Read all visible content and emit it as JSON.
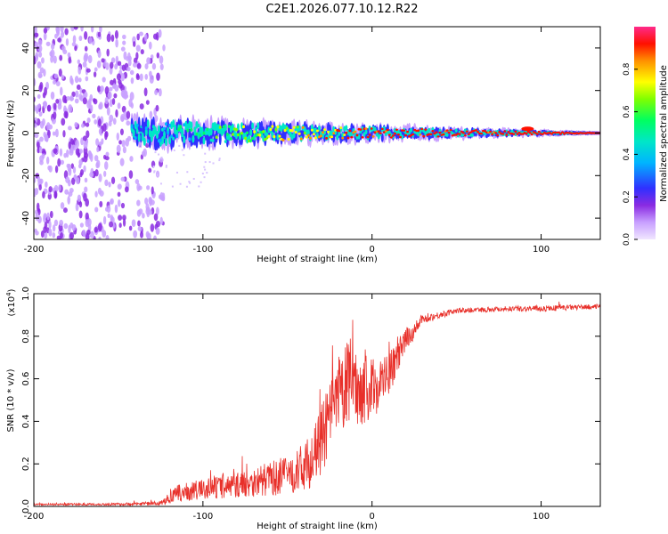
{
  "title": "C2E1.2026.077.10.12.R22",
  "chart_data": [
    {
      "type": "heatmap",
      "name": "spectrogram",
      "xlabel": "Height of straight line (km)",
      "ylabel": "Frequency (Hz)",
      "xlim": [
        -200,
        135
      ],
      "ylim": [
        -50,
        50
      ],
      "xticks": [
        -200,
        -100,
        0,
        100
      ],
      "yticks": [
        -40,
        -20,
        0,
        20,
        40
      ],
      "colorbar": {
        "label": "Normalized spectral amplitude",
        "range": [
          0,
          1
        ],
        "ticks": [
          "0.0",
          "0.2",
          "0.4",
          "0.6",
          "0.8"
        ],
        "tick_values": [
          0.0,
          0.2,
          0.4,
          0.6,
          0.8
        ],
        "colors": [
          "#e8d8ff",
          "#9b30ff",
          "#2020ff",
          "#00c8ff",
          "#00ff80",
          "#80ff00",
          "#ffff00",
          "#ff8000",
          "#ff0000",
          "#ff2080"
        ]
      },
      "regions": [
        {
          "desc": "broadband noise",
          "x_range": [
            -200,
            -123
          ],
          "f_range": [
            -50,
            50
          ],
          "amplitude": 0.1
        },
        {
          "desc": "carrier line",
          "x_range": [
            -142,
            135
          ],
          "f_center": 0,
          "amplitude_start": 0.35,
          "amplitude_end": 0.95
        },
        {
          "desc": "bright spot",
          "x": 92,
          "f": 2,
          "amplitude": 0.95
        }
      ]
    },
    {
      "type": "line",
      "name": "snr",
      "xlabel": "Height of straight line (km)",
      "ylabel": "SNR (10 * v/v)",
      "scale_label": "(x10",
      "scale_exp": "4",
      "scale_close": ")",
      "xlim": [
        -200,
        135
      ],
      "ylim": [
        0,
        1.0
      ],
      "xticks": [
        -200,
        -100,
        0,
        100
      ],
      "yticks": [
        "0.0",
        "0.2",
        "0.4",
        "0.6",
        "0.8",
        "1.0"
      ],
      "ytick_values": [
        0.0,
        0.2,
        0.4,
        0.6,
        0.8,
        1.0
      ],
      "color": "#e8302a",
      "series": [
        {
          "name": "SNR envelope",
          "x": [
            -200,
            -150,
            -125,
            -115,
            -100,
            -80,
            -60,
            -45,
            -35,
            -28,
            -20,
            -13,
            -8,
            0,
            10,
            20,
            30,
            50,
            80,
            100,
            135
          ],
          "y": [
            0.01,
            0.01,
            0.015,
            0.06,
            0.08,
            0.1,
            0.13,
            0.16,
            0.22,
            0.35,
            0.5,
            0.6,
            0.55,
            0.55,
            0.62,
            0.78,
            0.88,
            0.92,
            0.93,
            0.93,
            0.94
          ],
          "noise": [
            0.004,
            0.006,
            0.01,
            0.04,
            0.05,
            0.06,
            0.08,
            0.1,
            0.13,
            0.17,
            0.2,
            0.2,
            0.17,
            0.15,
            0.1,
            0.06,
            0.02,
            0.012,
            0.012,
            0.015,
            0.01
          ]
        }
      ]
    }
  ]
}
